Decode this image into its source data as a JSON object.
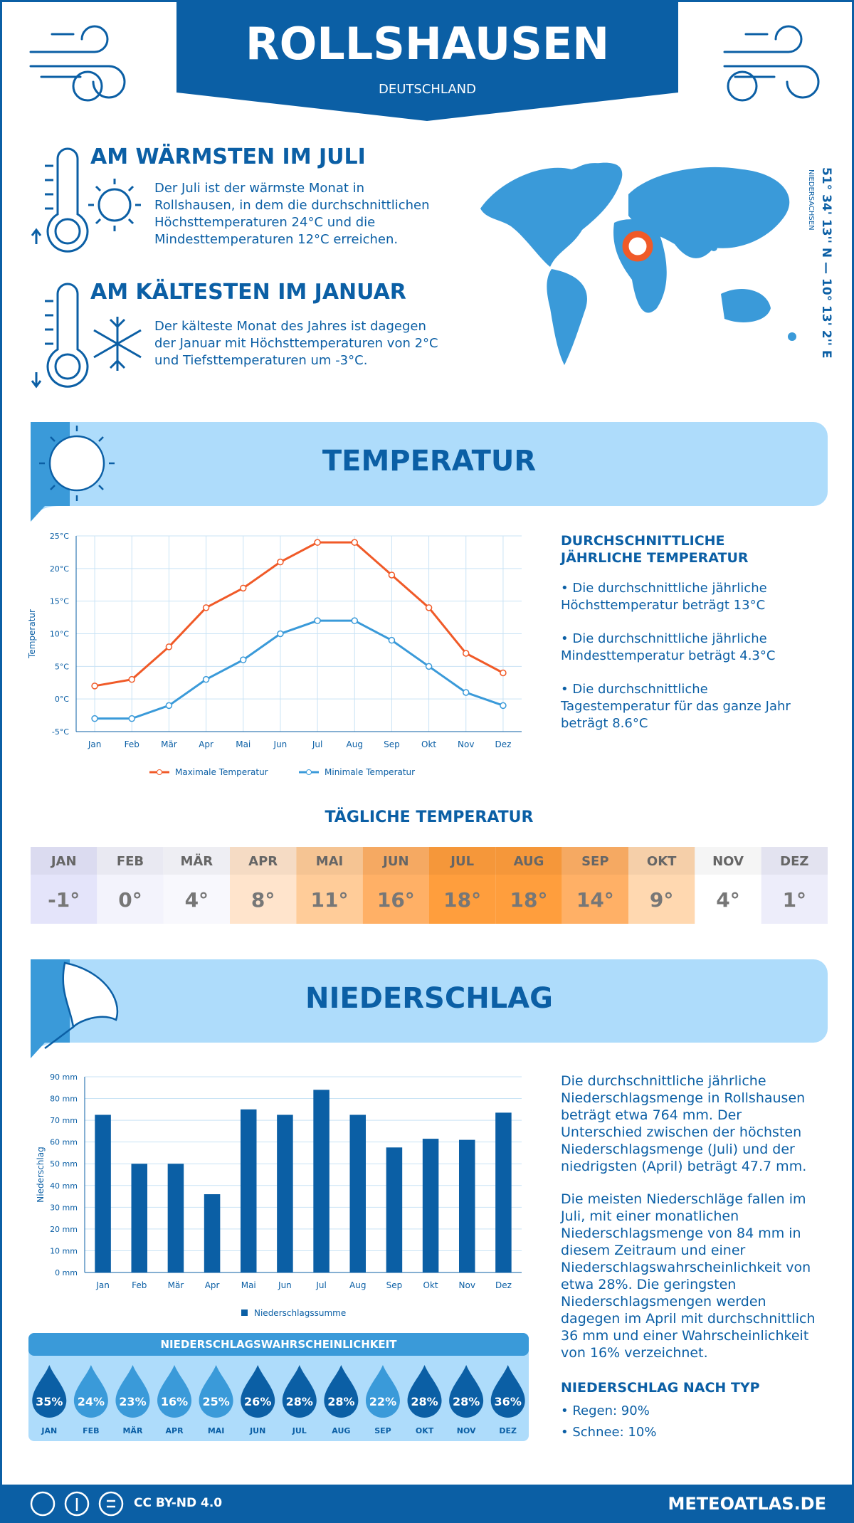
{
  "header": {
    "title": "ROLLSHAUSEN",
    "subtitle": "DEUTSCHLAND"
  },
  "location": {
    "coordinates": "51° 34' 13'' N — 10° 13' 2'' E",
    "region": "NIEDERSACHSEN"
  },
  "warmest": {
    "title": "AM WÄRMSTEN IM JULI",
    "text": "Der Juli ist der wärmste Monat in Rollshausen, in dem die durchschnittlichen Höchsttemperaturen 24°C und die Mindesttemperaturen 12°C erreichen."
  },
  "coldest": {
    "title": "AM KÄLTESTEN IM JANUAR",
    "text": "Der kälteste Monat des Jahres ist dagegen der Januar mit Höchsttemperaturen von 2°C und Tiefsttemperaturen um -3°C."
  },
  "temperature": {
    "title": "TEMPERATUR",
    "summary_title": "DURCHSCHNITTLICHE JÄHRLICHE TEMPERATUR",
    "bullets": [
      "• Die durchschnittliche jährliche Höchsttemperatur beträgt 13°C",
      "• Die durchschnittliche jährliche Mindesttemperatur beträgt 4.3°C",
      "• Die durchschnittliche Tagestemperatur für das ganze Jahr beträgt 8.6°C"
    ]
  },
  "daily": {
    "title": "TÄGLICHE TEMPERATUR",
    "months": [
      "JAN",
      "FEB",
      "MÄR",
      "APR",
      "MAI",
      "JUN",
      "JUL",
      "AUG",
      "SEP",
      "OKT",
      "NOV",
      "DEZ"
    ],
    "cells": [
      "-1°",
      "0°",
      "4°",
      "8°",
      "11°",
      "16°",
      "18°",
      "18°",
      "14°",
      "9°",
      "4°",
      "1°"
    ],
    "colors": [
      "#e4e4fa",
      "#f3f3fc",
      "#f8f8fd",
      "#ffe4cc",
      "#ffcc99",
      "#ffb066",
      "#ff9e3d",
      "#ff9e3d",
      "#ffb066",
      "#ffd8b0",
      "#ffffff",
      "#ededfa"
    ]
  },
  "precipitation": {
    "title": "NIEDERSCHLAG",
    "paragraphs": [
      "Die durchschnittliche jährliche Niederschlagsmenge in Rollshausen beträgt etwa 764 mm. Der Unterschied zwischen der höchsten Niederschlagsmenge (Juli) und der niedrigsten (April) beträgt 47.7 mm.",
      "Die meisten Niederschläge fallen im Juli, mit einer monatlichen Niederschlagsmenge von 84 mm in diesem Zeitraum und einer Niederschlagswahrscheinlichkeit von etwa 28%. Die geringsten Niederschlagsmengen werden dagegen im April mit durchschnittlich 36 mm und einer Wahrscheinlichkeit von 16% verzeichnet."
    ],
    "type_title": "NIEDERSCHLAG NACH TYP",
    "types": [
      "• Regen: 90%",
      "• Schnee: 10%"
    ]
  },
  "probability": {
    "title": "NIEDERSCHLAGSWAHRSCHEINLICHKEIT",
    "months": [
      "JAN",
      "FEB",
      "MÄR",
      "APR",
      "MAI",
      "JUN",
      "JUL",
      "AUG",
      "SEP",
      "OKT",
      "NOV",
      "DEZ"
    ],
    "cells": [
      "35%",
      "24%",
      "23%",
      "16%",
      "25%",
      "26%",
      "28%",
      "28%",
      "22%",
      "28%",
      "28%",
      "36%"
    ],
    "colors": [
      "#0b5fa5",
      "#3a9ad9",
      "#3a9ad9",
      "#3a9ad9",
      "#3a9ad9",
      "#0b5fa5",
      "#0b5fa5",
      "#0b5fa5",
      "#3a9ad9",
      "#0b5fa5",
      "#0b5fa5",
      "#0b5fa5"
    ]
  },
  "footer": {
    "license": "CC BY-ND 4.0",
    "site": "METEOATLAS.DE"
  },
  "chart_data": [
    {
      "type": "line",
      "y_label": "Temperatur",
      "categories": [
        "Jan",
        "Feb",
        "Mär",
        "Apr",
        "Mai",
        "Jun",
        "Jul",
        "Aug",
        "Sep",
        "Okt",
        "Nov",
        "Dez"
      ],
      "series": [
        {
          "name": "Maximale Temperatur",
          "color": "#f05a28",
          "values": [
            2,
            3,
            8,
            14,
            17,
            21,
            24,
            24,
            19,
            14,
            7,
            4
          ]
        },
        {
          "name": "Minimale Temperatur",
          "color": "#3a9ad9",
          "values": [
            -3,
            -3,
            -1,
            3,
            6,
            10,
            12,
            12,
            9,
            5,
            1,
            -1
          ]
        }
      ],
      "ylim": [
        -5,
        25
      ],
      "yticks": [
        {
          "value": -5,
          "label": "-5°C"
        },
        {
          "value": 0,
          "label": "0°C"
        },
        {
          "value": 5,
          "label": "5°C"
        },
        {
          "value": 10,
          "label": "10°C"
        },
        {
          "value": 15,
          "label": "15°C"
        },
        {
          "value": 20,
          "label": "20°C"
        },
        {
          "value": 25,
          "label": "25°C"
        }
      ],
      "grid": true,
      "legend": "bottom"
    },
    {
      "type": "bar",
      "y_label": "Niederschlag",
      "categories": [
        "Jan",
        "Feb",
        "Mär",
        "Apr",
        "Mai",
        "Jun",
        "Jul",
        "Aug",
        "Sep",
        "Okt",
        "Nov",
        "Dez"
      ],
      "series": [
        {
          "name": "Niederschlagssumme",
          "color": "#0b5fa5",
          "values": [
            72.5,
            50,
            50,
            36,
            75,
            72.5,
            84,
            72.5,
            57.5,
            61.5,
            61,
            73.5
          ]
        }
      ],
      "ylim": [
        0,
        90
      ],
      "yticks": [
        {
          "value": 0,
          "label": "0 mm"
        },
        {
          "value": 10,
          "label": "10 mm"
        },
        {
          "value": 20,
          "label": "20 mm"
        },
        {
          "value": 30,
          "label": "30 mm"
        },
        {
          "value": 40,
          "label": "40 mm"
        },
        {
          "value": 50,
          "label": "50 mm"
        },
        {
          "value": 60,
          "label": "60 mm"
        },
        {
          "value": 70,
          "label": "70 mm"
        },
        {
          "value": 80,
          "label": "80 mm"
        },
        {
          "value": 90,
          "label": "90 mm"
        }
      ],
      "grid": true,
      "legend": "bottom"
    }
  ]
}
